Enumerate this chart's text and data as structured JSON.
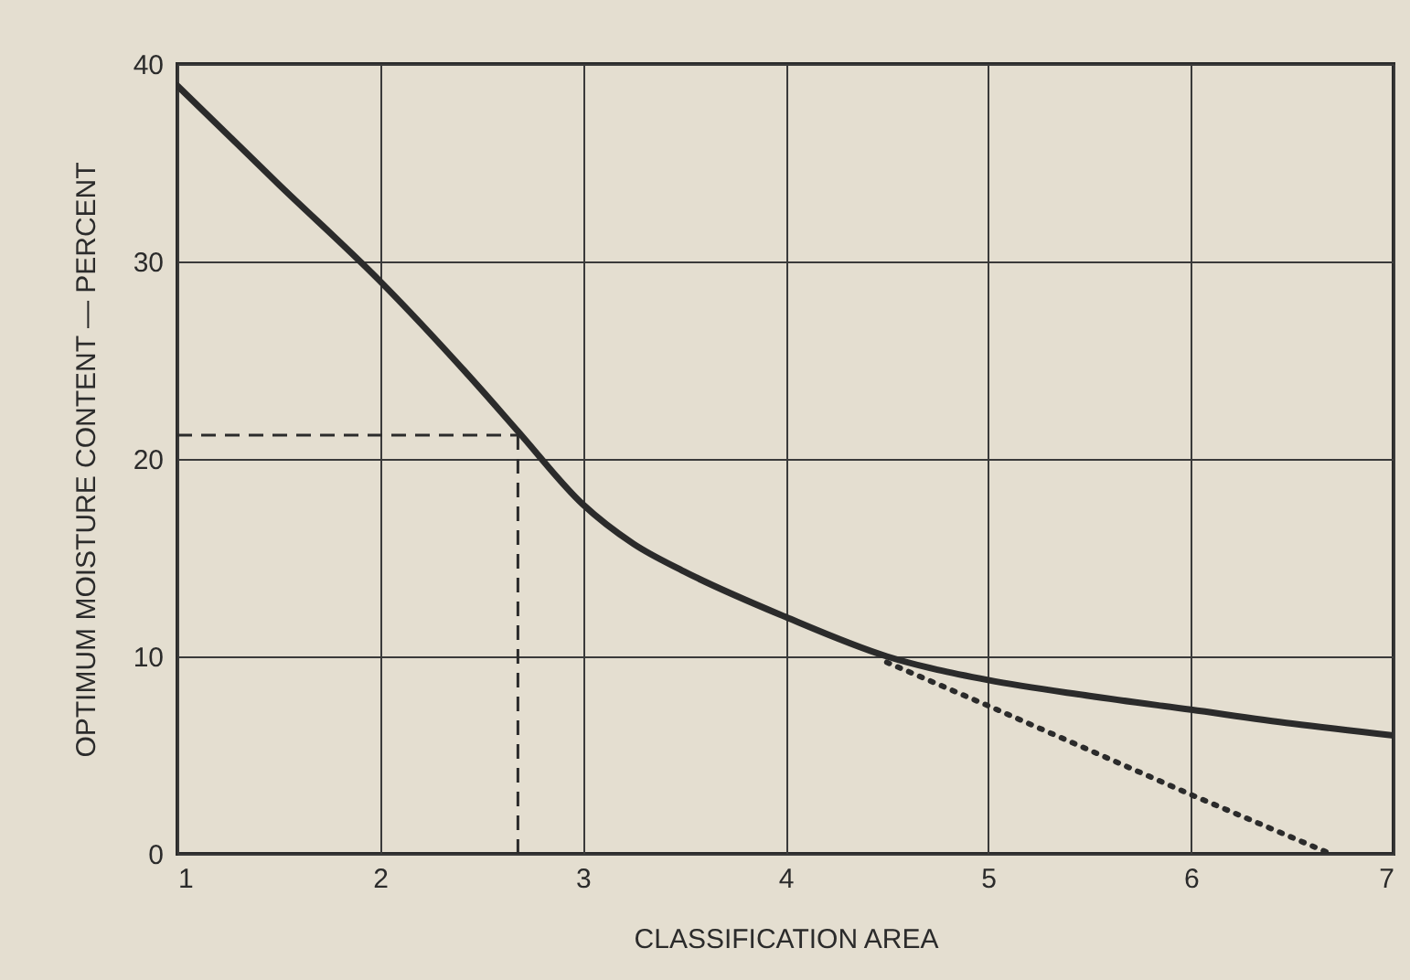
{
  "chart_data": {
    "type": "line",
    "xlabel": "CLASSIFICATION AREA",
    "ylabel": "OPTIMUM MOISTURE CONTENT — PERCENT",
    "xlim": [
      1,
      7
    ],
    "xticks": [
      1,
      2,
      3,
      4,
      5,
      6,
      7
    ],
    "ylim": [
      0,
      40
    ],
    "yticks": [
      0,
      10,
      20,
      30,
      40
    ],
    "grid": true,
    "series": [
      {
        "color": "#2b2b2b",
        "line_style": "solid",
        "x": [
          1,
          1.5,
          2,
          2.5,
          2.68,
          3,
          3.25,
          3.5,
          4,
          4.5,
          5,
          5.5,
          6,
          6.5,
          7
        ],
        "values": [
          38.9,
          33.9,
          29,
          23.5,
          21.4,
          17.7,
          15.7,
          14.3,
          12,
          10,
          8.8,
          8,
          7.3,
          6.6,
          6
        ]
      },
      {
        "color": "#2b2b2b",
        "line_style": "dotted",
        "x": [
          4.5,
          5,
          6,
          6.69
        ],
        "values": [
          9.7,
          7.5,
          3,
          0
        ]
      },
      {
        "color": "#2b2b2b",
        "line_style": "dashed",
        "x": [
          1,
          2.68
        ],
        "values": [
          21.2,
          21.2
        ]
      },
      {
        "color": "#2b2b2b",
        "line_style": "dashed",
        "x": [
          2.68,
          2.68
        ],
        "values": [
          21.2,
          0
        ]
      }
    ]
  }
}
